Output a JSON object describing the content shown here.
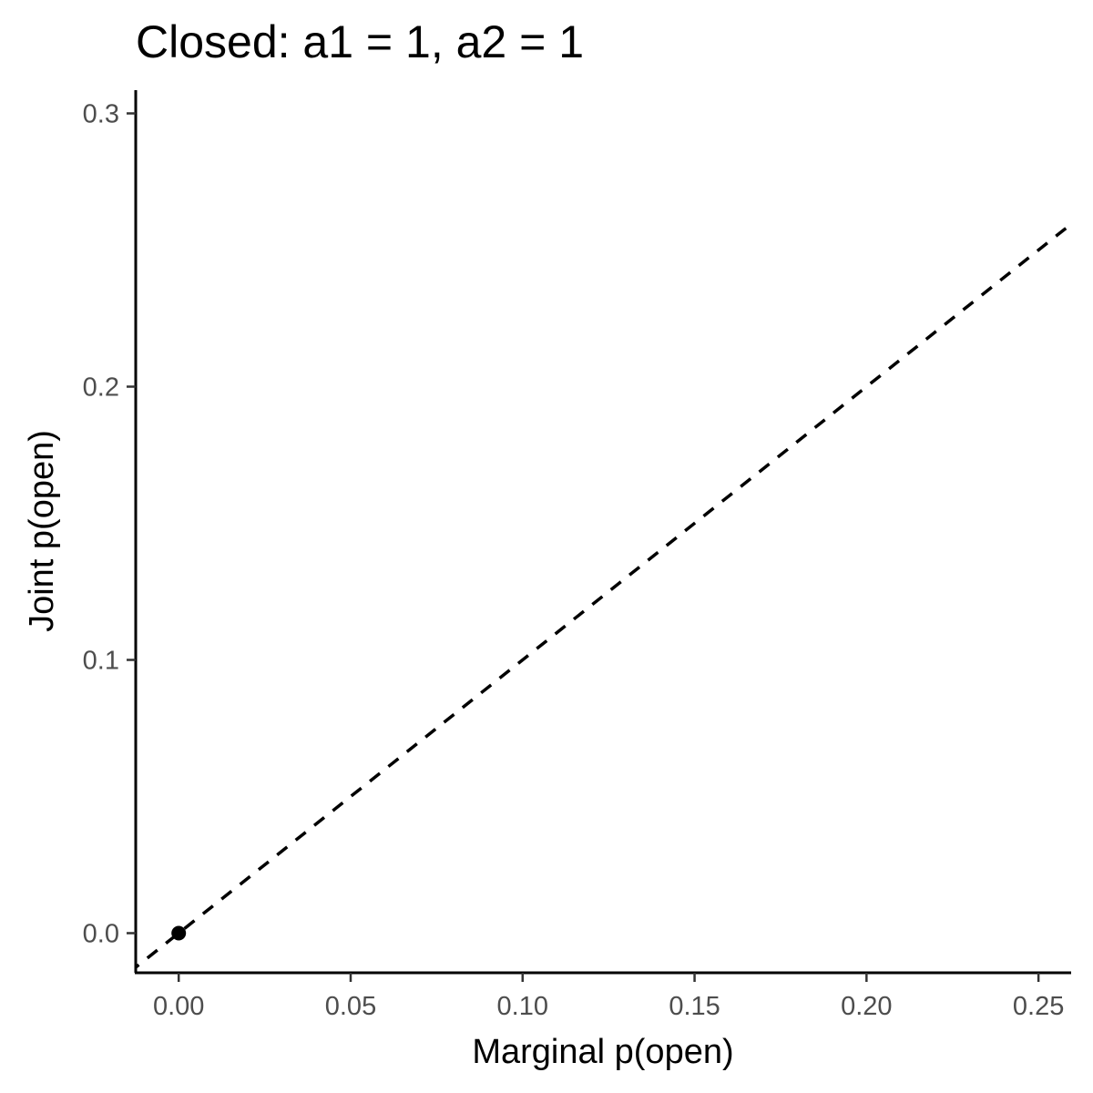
{
  "chart_data": {
    "type": "scatter",
    "title": "Closed: a1 = 1, a2 = 1",
    "xlabel": "Marginal p(open)",
    "ylabel": "Joint p(open)",
    "xlim": [
      -0.0125,
      0.2595
    ],
    "ylim": [
      -0.0145,
      0.3085
    ],
    "x_ticks": [
      0.0,
      0.05,
      0.1,
      0.15,
      0.2,
      0.25
    ],
    "x_tick_labels": [
      "0.00",
      "0.05",
      "0.10",
      "0.15",
      "0.20",
      "0.25"
    ],
    "y_ticks": [
      0.0,
      0.1,
      0.2,
      0.3
    ],
    "y_tick_labels": [
      "0.0",
      "0.1",
      "0.2",
      "0.3"
    ],
    "points": [
      {
        "x": 0.0,
        "y": 0.0
      }
    ],
    "reference_line": {
      "type": "identity",
      "style": "dashed",
      "color": "#000000"
    },
    "grid": false,
    "legend": "none",
    "point_color": "#000000"
  }
}
